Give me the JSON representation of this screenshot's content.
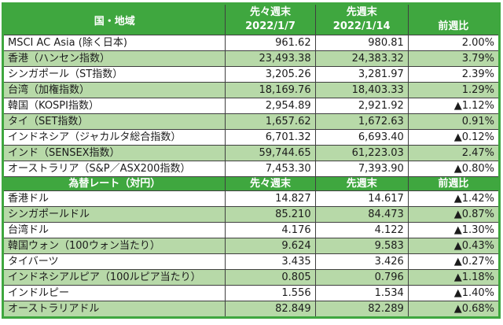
{
  "colors": {
    "header_green": "#3fa73f",
    "row_light_green": "#b7d9a8",
    "negative_red": "#e02b20",
    "grid_border": "#3f3f3f"
  },
  "indices": {
    "header": {
      "region": "国・地域",
      "prev2_label": "先々週末",
      "prev2_date": "2022/1/7",
      "prev1_label": "先週末",
      "prev1_date": "2022/1/14",
      "change": "前週比"
    },
    "rows": [
      {
        "label": "MSCI AC Asia (除く日本)",
        "prev2": "961.62",
        "prev1": "980.81",
        "change": "2.00%"
      },
      {
        "label": "香港（ハンセン指数）",
        "prev2": "23,493.38",
        "prev1": "24,383.32",
        "change": "3.79%"
      },
      {
        "label": "シンガポール（ST指数）",
        "prev2": "3,205.26",
        "prev1": "3,281.97",
        "change": "2.39%"
      },
      {
        "label": "台湾（加権指数）",
        "prev2": "18,169.76",
        "prev1": "18,403.33",
        "change": "1.29%"
      },
      {
        "label": "韓国（KOSPI指数）",
        "prev2": "2,954.89",
        "prev1": "2,921.92",
        "change": "▲1.12%"
      },
      {
        "label": "タイ（SET指数）",
        "prev2": "1,657.62",
        "prev1": "1,672.63",
        "change": "0.91%"
      },
      {
        "label": "インドネシア（ジャカルタ総合指数）",
        "prev2": "6,701.32",
        "prev1": "6,693.40",
        "change": "▲0.12%"
      },
      {
        "label": "インド（SENSEX指数）",
        "prev2": "59,744.65",
        "prev1": "61,223.03",
        "change": "2.47%"
      },
      {
        "label": "オーストラリア（S&P／ASX200指数）",
        "prev2": "7,453.30",
        "prev1": "7,393.90",
        "change": "▲0.80%"
      }
    ]
  },
  "fx": {
    "header": {
      "label": "為替レート（対円）",
      "prev2": "先々週末",
      "prev1": "先週末",
      "change": "前週比"
    },
    "rows": [
      {
        "label": "香港ドル",
        "prev2": "14.827",
        "prev1": "14.617",
        "change": "▲1.42%"
      },
      {
        "label": "シンガポールドル",
        "prev2": "85.210",
        "prev1": "84.473",
        "change": "▲0.87%"
      },
      {
        "label": "台湾ドル",
        "prev2": "4.176",
        "prev1": "4.122",
        "change": "▲1.30%"
      },
      {
        "label": "韓国ウォン（100ウォン当たり）",
        "prev2": "9.624",
        "prev1": "9.583",
        "change": "▲0.43%"
      },
      {
        "label": "タイバーツ",
        "prev2": "3.435",
        "prev1": "3.426",
        "change": "▲0.27%"
      },
      {
        "label": "インドネシアルピア（100ルピア当たり）",
        "prev2": "0.805",
        "prev1": "0.796",
        "change": "▲1.18%"
      },
      {
        "label": "インドルピー",
        "prev2": "1.556",
        "prev1": "1.534",
        "change": "▲1.40%"
      },
      {
        "label": "オーストラリアドル",
        "prev2": "82.849",
        "prev1": "82.289",
        "change": "▲0.68%"
      }
    ]
  }
}
